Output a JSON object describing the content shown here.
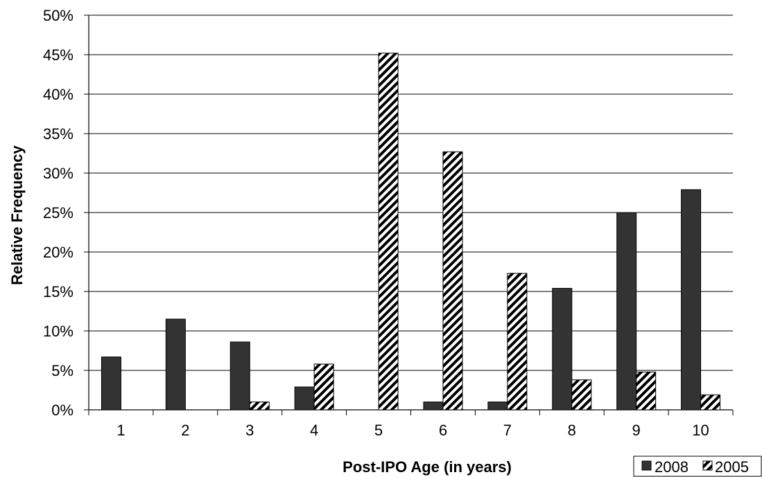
{
  "chart_data": {
    "type": "bar",
    "title": "",
    "xlabel": "Post-IPO Age (in years)",
    "ylabel": "Relative Frequency",
    "categories": [
      "1",
      "2",
      "3",
      "4",
      "5",
      "6",
      "7",
      "8",
      "9",
      "10"
    ],
    "series": [
      {
        "name": "2008",
        "values": [
          6.7,
          11.5,
          8.6,
          2.9,
          0,
          1.0,
          1.0,
          15.4,
          25.0,
          27.9
        ],
        "color": "#333333",
        "fill": "solid"
      },
      {
        "name": "2005",
        "values": [
          0,
          0,
          1.0,
          5.8,
          45.2,
          32.7,
          17.3,
          3.8,
          4.8,
          1.9
        ],
        "color": "#000000",
        "fill": "diagonal-hatch"
      }
    ],
    "ylim": [
      0,
      50
    ],
    "yticks": [
      0,
      5,
      10,
      15,
      20,
      25,
      30,
      35,
      40,
      45,
      50
    ],
    "ytick_labels": [
      "0%",
      "5%",
      "10%",
      "15%",
      "20%",
      "25%",
      "30%",
      "35%",
      "40%",
      "45%",
      "50%"
    ],
    "grid": true,
    "legend_position": "bottom-right"
  }
}
